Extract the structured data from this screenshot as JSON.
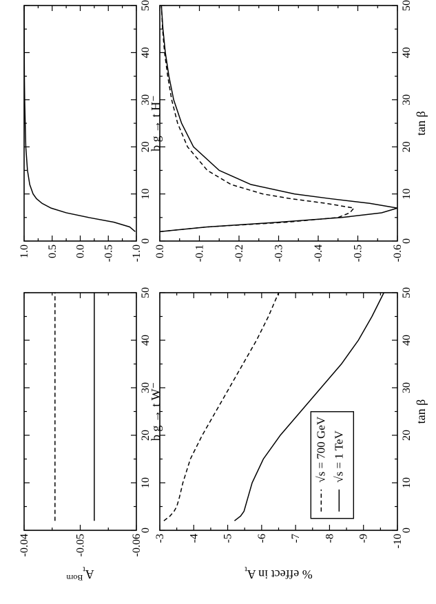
{
  "chart_data": [
    {
      "id": "tW_born",
      "type": "line",
      "title": "b g → t W⁻",
      "ylabel": "Aₜᴮᵒʳⁿ",
      "ylabel_main": "A",
      "ylabel_sub": "t",
      "ylabel_sup": "Born",
      "xlim": [
        0,
        50
      ],
      "ylim": [
        -0.06,
        -0.04
      ],
      "xticks": [
        0,
        10,
        20,
        30,
        40,
        50
      ],
      "yticks": [
        -0.06,
        -0.05,
        -0.04
      ],
      "ytick_labels": [
        "-0.06",
        "-0.05",
        "-0.04"
      ],
      "series": [
        {
          "style": "dashed",
          "x": [
            2,
            50
          ],
          "y": [
            -0.0455,
            -0.0455
          ]
        },
        {
          "style": "solid",
          "x": [
            2,
            50
          ],
          "y": [
            -0.0525,
            -0.0525
          ]
        }
      ]
    },
    {
      "id": "tH_born",
      "type": "line",
      "title": "b g → t H⁻",
      "xlim": [
        0,
        50
      ],
      "ylim": [
        -1.0,
        1.0
      ],
      "xticks": [
        0,
        10,
        20,
        30,
        40,
        50
      ],
      "yticks": [
        -1.0,
        -0.5,
        0.0,
        0.5,
        1.0
      ],
      "ytick_labels": [
        "-1.0",
        "-0.5",
        "0.0",
        "0.5",
        "1.0"
      ],
      "series": [
        {
          "style": "solid",
          "x": [
            2,
            3,
            4,
            5,
            6,
            7,
            8,
            9,
            10,
            12,
            15,
            20,
            25,
            30,
            35,
            40,
            45,
            50
          ],
          "y": [
            -0.98,
            -0.88,
            -0.6,
            -0.15,
            0.25,
            0.52,
            0.68,
            0.78,
            0.84,
            0.9,
            0.94,
            0.97,
            0.98,
            0.99,
            0.995,
            0.997,
            0.998,
            0.999
          ]
        }
      ]
    },
    {
      "id": "tW_effect",
      "type": "line",
      "ylabel": "% effect in A",
      "ylabel_main": "% effect in A",
      "ylabel_sub": "t",
      "xlabel": "tan β",
      "xlim": [
        0,
        50
      ],
      "ylim": [
        -10,
        -3
      ],
      "xticks": [
        0,
        10,
        20,
        30,
        40,
        50
      ],
      "yticks": [
        -10,
        -9,
        -8,
        -7,
        -6,
        -5,
        -4,
        -3
      ],
      "ytick_labels": [
        "-10",
        "-9",
        "-8",
        "-7",
        "-6",
        "-5",
        "-4",
        "-3"
      ],
      "legend": {
        "placement": "lower-left",
        "entries": [
          {
            "label": "√s = 700 GeV",
            "style": "dashed"
          },
          {
            "label": "√s = 1 TeV",
            "style": "solid"
          }
        ]
      },
      "series": [
        {
          "name": "√s = 700 GeV",
          "style": "dashed",
          "x": [
            2,
            3,
            4,
            5,
            7,
            10,
            15,
            20,
            25,
            30,
            35,
            40,
            45,
            50
          ],
          "y": [
            -3.12,
            -3.3,
            -3.42,
            -3.5,
            -3.58,
            -3.68,
            -3.9,
            -4.25,
            -4.65,
            -5.05,
            -5.45,
            -5.85,
            -6.2,
            -6.5
          ]
        },
        {
          "name": "√s = 1 TeV",
          "style": "solid",
          "x": [
            2,
            3,
            4,
            5,
            7,
            10,
            15,
            20,
            25,
            30,
            35,
            40,
            45,
            50
          ],
          "y": [
            -5.2,
            -5.38,
            -5.48,
            -5.52,
            -5.6,
            -5.72,
            -6.05,
            -6.55,
            -7.15,
            -7.75,
            -8.35,
            -8.85,
            -9.25,
            -9.6
          ]
        }
      ]
    },
    {
      "id": "tH_effect",
      "type": "line",
      "xlabel": "tan β",
      "xlim": [
        0,
        50
      ],
      "ylim": [
        -0.6,
        0.0
      ],
      "xticks": [
        0,
        10,
        20,
        30,
        40,
        50
      ],
      "yticks": [
        -0.6,
        -0.5,
        -0.4,
        -0.3,
        -0.2,
        -0.1,
        0.0
      ],
      "ytick_labels": [
        "-0.6",
        "-0.5",
        "-0.4",
        "-0.3",
        "-0.2",
        "-0.1",
        "0.0"
      ],
      "series": [
        {
          "name": "√s = 700 GeV",
          "style": "dashed",
          "x": [
            2,
            3,
            4,
            5,
            6,
            7,
            8,
            9,
            10,
            12,
            15,
            20,
            25,
            30,
            35,
            40,
            45,
            50
          ],
          "y": [
            0.0,
            -0.12,
            -0.32,
            -0.45,
            -0.48,
            -0.49,
            -0.42,
            -0.33,
            -0.26,
            -0.18,
            -0.12,
            -0.07,
            -0.045,
            -0.03,
            -0.02,
            -0.012,
            -0.007,
            -0.004
          ]
        },
        {
          "name": "√s = 1 TeV",
          "style": "solid",
          "x": [
            2,
            3,
            4,
            5,
            6,
            7,
            8,
            9,
            10,
            12,
            15,
            20,
            25,
            30,
            35,
            40,
            45,
            50
          ],
          "y": [
            0.0,
            -0.12,
            -0.3,
            -0.46,
            -0.56,
            -0.6,
            -0.53,
            -0.43,
            -0.34,
            -0.23,
            -0.15,
            -0.085,
            -0.055,
            -0.035,
            -0.023,
            -0.014,
            -0.008,
            -0.004
          ]
        }
      ]
    }
  ]
}
